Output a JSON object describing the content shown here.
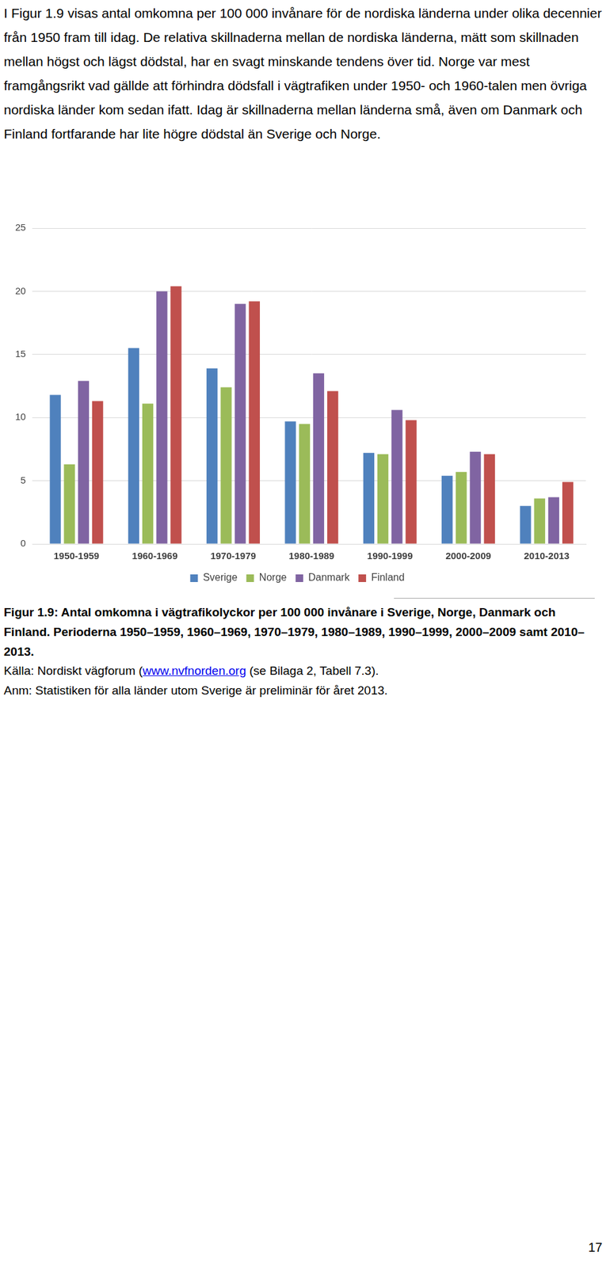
{
  "document": {
    "paragraph": "I Figur 1.9 visas antal omkomna per 100 000 invånare för de nordiska länderna under olika decennier från 1950 fram till idag. De relativa skillnaderna mellan de nordiska länderna, mätt som skillnaden mellan högst och lägst dödstal, har en svagt minskande tendens över tid. Norge var mest framgångsrikt vad gällde att förhindra dödsfall i vägtrafiken under 1950- och 1960-talen men övriga nordiska länder kom sedan ifatt. Idag är skillnaderna mellan länderna små, även om Danmark och Finland fortfarande har lite högre dödstal än Sverige och Norge.",
    "caption": "Figur 1.9: Antal omkomna i vägtrafikolyckor per 100 000 invånare i Sverige, Norge, Danmark och Finland. Perioderna 1950–1959, 1960–1969, 1970–1979, 1980–1989, 1990–1999, 2000–2009 samt 2010–2013.",
    "source_before_link": "Källa: Nordiskt vägforum (",
    "source_link": "www.nvfnorden.org",
    "source_after_link": " (se Bilaga 2, Tabell 7.3).",
    "note": "Anm: Statistiken för alla länder utom Sverige är preliminär för året 2013.",
    "page_number": "17"
  },
  "chart_data": {
    "type": "bar",
    "categories": [
      "1950-1959",
      "1960-1969",
      "1970-1979",
      "1980-1989",
      "1990-1999",
      "2000-2009",
      "2010-2013"
    ],
    "series": [
      {
        "name": "Sverige",
        "color": "#4f81bd",
        "values": [
          11.8,
          15.5,
          13.9,
          9.7,
          7.2,
          5.4,
          3.0
        ]
      },
      {
        "name": "Norge",
        "color": "#9bbb59",
        "values": [
          6.3,
          11.1,
          12.4,
          9.5,
          7.1,
          5.7,
          3.6
        ]
      },
      {
        "name": "Danmark",
        "color": "#8064a2",
        "values": [
          12.9,
          20.0,
          19.0,
          13.5,
          10.6,
          7.3,
          3.7
        ]
      },
      {
        "name": "Finland",
        "color": "#c0504d",
        "values": [
          11.3,
          20.4,
          19.2,
          12.1,
          9.8,
          7.1,
          4.9
        ]
      }
    ],
    "ylim": [
      0,
      25
    ],
    "yticks": [
      0,
      5,
      10,
      15,
      20,
      25
    ],
    "grid": true,
    "legend": "bottom"
  }
}
